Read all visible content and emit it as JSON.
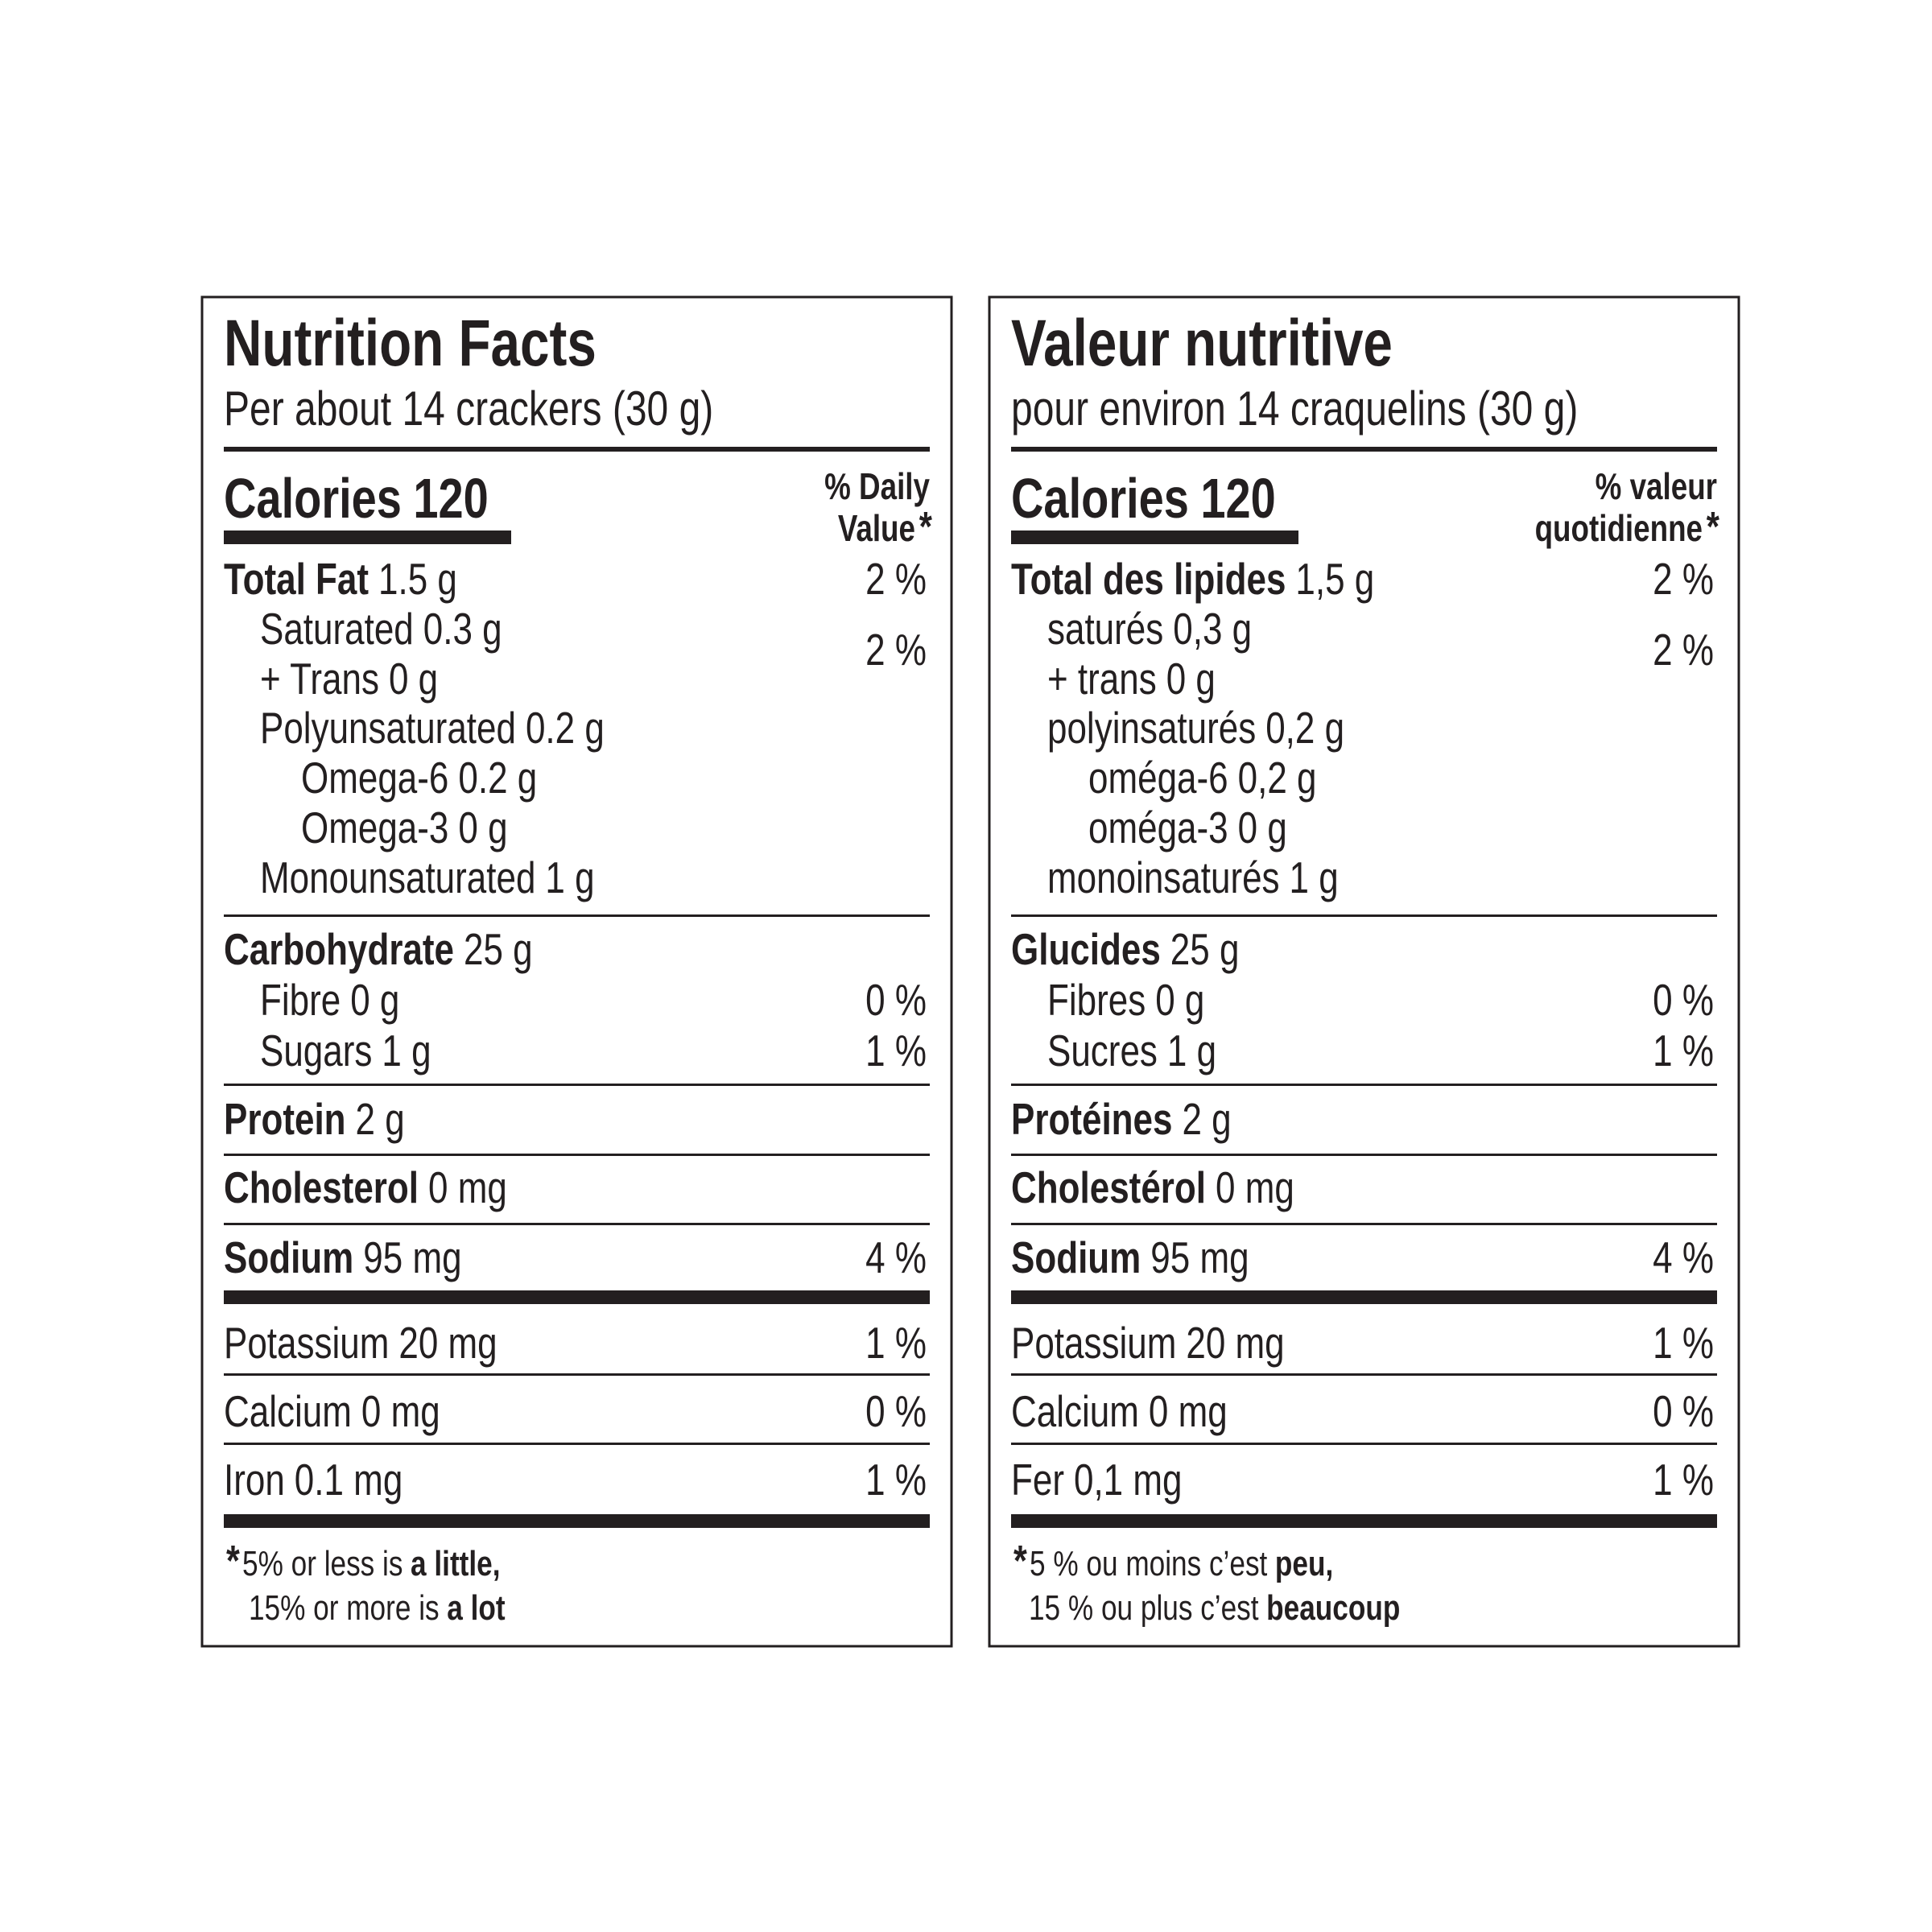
{
  "labels": [
    {
      "title": "Nutrition Facts",
      "serving": "Per about 14 crackers (30 g)",
      "calories": {
        "label": "Calories",
        "value": 120
      },
      "daily_value_header": [
        "% Daily",
        "Value"
      ],
      "asterisk": "*",
      "sections": [
        [
          {
            "name": "Total Fat",
            "amount": "1.5 g",
            "dv": "2 %"
          },
          {
            "name": "Saturated",
            "amount": "0.3 g",
            "dv": "2 %"
          },
          {
            "name": "+ Trans",
            "amount": "0 g"
          },
          {
            "name": "Polyunsaturated",
            "amount": "0.2 g"
          },
          {
            "name": "Omega-6",
            "amount": "0.2 g"
          },
          {
            "name": "Omega-3",
            "amount": "0 g"
          },
          {
            "name": "Monounsaturated",
            "amount": "1 g"
          }
        ],
        [
          {
            "name": "Carbohydrate",
            "amount": "25 g"
          },
          {
            "name": "Fibre",
            "amount": "0 g",
            "dv": "0 %"
          },
          {
            "name": "Sugars",
            "amount": "1 g",
            "dv": "1 %"
          }
        ],
        [
          {
            "name": "Protein",
            "amount": "2 g"
          }
        ],
        [
          {
            "name": "Cholesterol",
            "amount": "0 mg"
          }
        ],
        [
          {
            "name": "Sodium",
            "amount": "95 mg",
            "dv": "4 %"
          }
        ],
        [
          {
            "name": "Potassium",
            "amount": "20 mg",
            "dv": "1 %"
          }
        ],
        [
          {
            "name": "Calcium",
            "amount": "0 mg",
            "dv": "0 %"
          }
        ],
        [
          {
            "name": "Iron",
            "amount": "0.1 mg",
            "dv": "1 %"
          }
        ]
      ],
      "footnote": {
        "asterisk": "*",
        "lines": [
          [
            "5% or less is",
            "a little,"
          ],
          [
            "15% or more is",
            "a lot"
          ]
        ]
      }
    },
    {
      "title": "Valeur nutritive",
      "serving": "pour environ 14 craquelins (30 g)",
      "calories": {
        "label": "Calories",
        "value": 120
      },
      "daily_value_header": [
        "% valeur",
        "quotidienne"
      ],
      "asterisk": "*",
      "sections": [
        [
          {
            "name": "Total des lipides",
            "amount": "1,5 g",
            "dv": "2 %"
          },
          {
            "name": "saturés",
            "amount": "0,3 g",
            "dv": "2 %"
          },
          {
            "name": "+ trans",
            "amount": "0 g"
          },
          {
            "name": "polyinsaturés",
            "amount": "0,2 g"
          },
          {
            "name": "oméga-6",
            "amount": "0,2 g"
          },
          {
            "name": "oméga-3",
            "amount": "0 g"
          },
          {
            "name": "monoinsaturés",
            "amount": "1 g"
          }
        ],
        [
          {
            "name": "Glucides",
            "amount": "25 g"
          },
          {
            "name": "Fibres",
            "amount": "0 g",
            "dv": "0 %"
          },
          {
            "name": "Sucres",
            "amount": "1 g",
            "dv": "1 %"
          }
        ],
        [
          {
            "name": "Protéines",
            "amount": "2 g"
          }
        ],
        [
          {
            "name": "Cholestérol",
            "amount": "0 mg"
          }
        ],
        [
          {
            "name": "Sodium",
            "amount": "95 mg",
            "dv": "4 %"
          }
        ],
        [
          {
            "name": "Potassium",
            "amount": "20 mg",
            "dv": "1 %"
          }
        ],
        [
          {
            "name": "Calcium",
            "amount": "0 mg",
            "dv": "0 %"
          }
        ],
        [
          {
            "name": "Fer",
            "amount": "0,1 mg",
            "dv": "1 %"
          }
        ]
      ],
      "footnote": {
        "asterisk": "*",
        "lines": [
          [
            "5 % ou moins c’est",
            "peu,"
          ],
          [
            "15 % ou plus c’est",
            "beaucoup"
          ]
        ]
      }
    }
  ]
}
